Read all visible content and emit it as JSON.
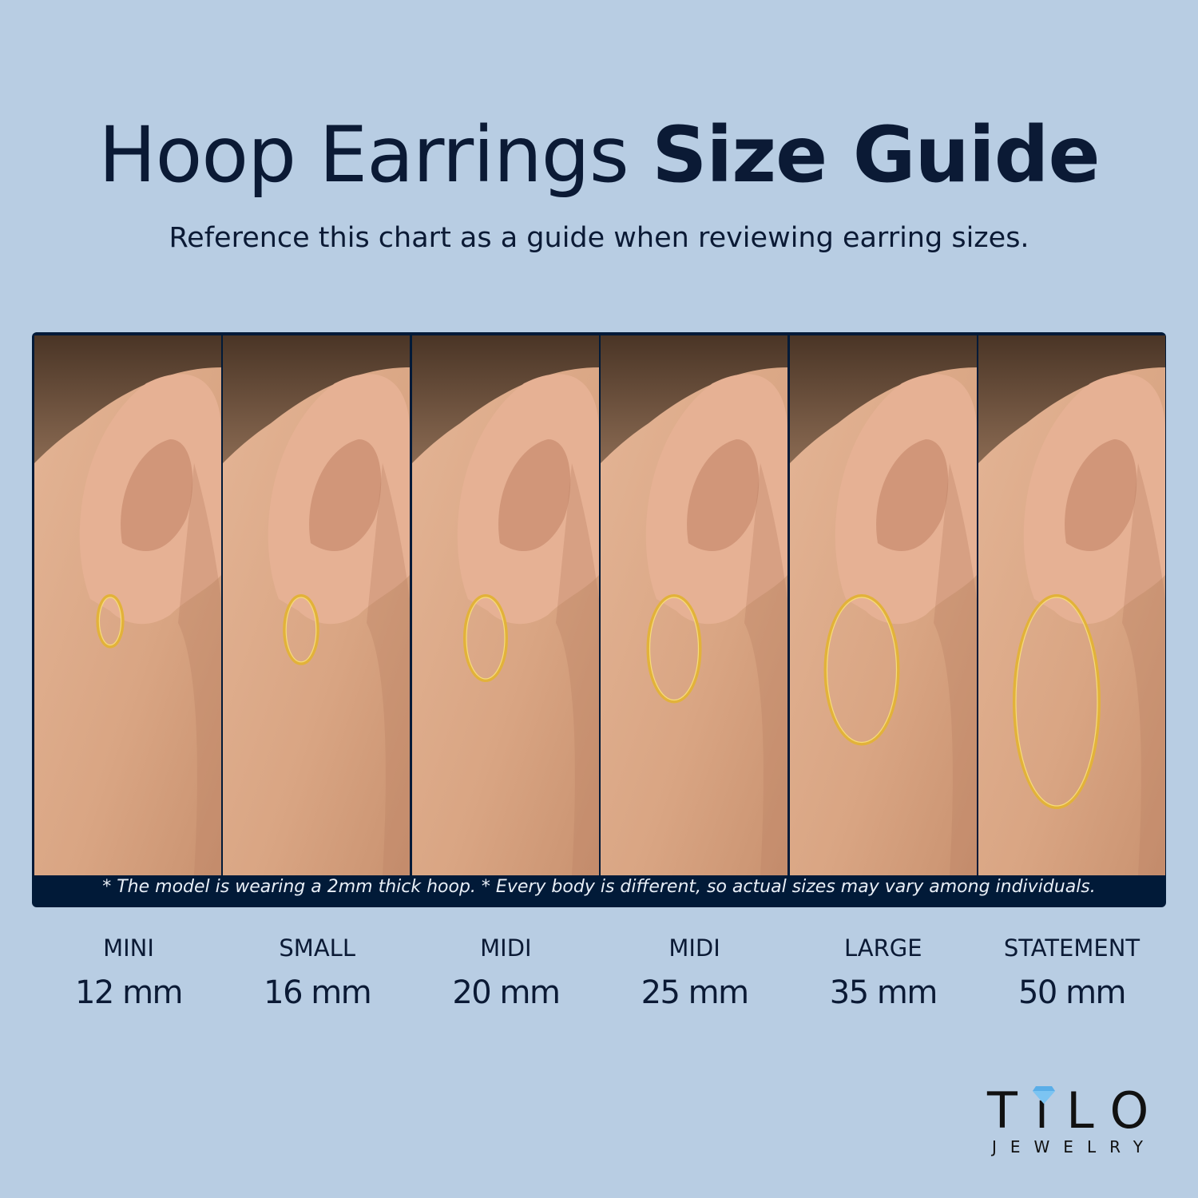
{
  "title": {
    "light": "Hoop Earrings",
    "bold": "Size Guide"
  },
  "subtitle": "Reference this chart as a guide when reviewing earring sizes.",
  "note": "* The model is wearing a 2mm thick hoop. * Every body is different, so actual sizes may vary among individuals.",
  "sizes": [
    {
      "label": "MINI",
      "value": "12 mm",
      "mm": 12
    },
    {
      "label": "SMALL",
      "value": "16 mm",
      "mm": 16
    },
    {
      "label": "MIDI",
      "value": "20 mm",
      "mm": 20
    },
    {
      "label": "MIDI",
      "value": "25 mm",
      "mm": 25
    },
    {
      "label": "LARGE",
      "value": "35 mm",
      "mm": 35
    },
    {
      "label": "STATEMENT",
      "value": "50 mm",
      "mm": 50
    }
  ],
  "logo": {
    "word": "TiLO",
    "sub": "JEWELRY"
  },
  "colors": {
    "background": "#b8cde3",
    "frame": "#011a38",
    "gold": "#e2b23a",
    "gem": "#5aaee8"
  }
}
